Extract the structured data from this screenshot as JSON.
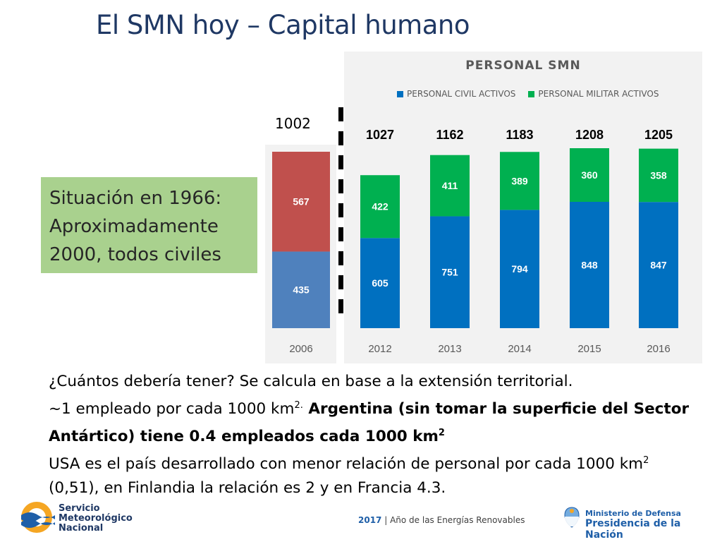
{
  "slide": {
    "title": "El SMN hoy – Capital humano",
    "situation_box": {
      "line1": "Situación en 1966:",
      "line2": "Aproximadamente",
      "line3": "2000, todos civiles"
    },
    "total_2006_label": "1002",
    "body": {
      "line1": "¿Cuántos debería tener? Se calcula en base a la extensión territorial.",
      "line2_a": "~1 empleado por cada 1000 km",
      "line2_sup": "2.",
      "line2_b": " Argentina (sin tomar la superficie del Sector",
      "line3_a": "Antártico) tiene 0.4 empleados cada 1000 km",
      "line3_sup": "2",
      "line4_a": "USA es el país desarrollado con menor relación de personal por cada 1000 km",
      "line4_sup": "2",
      "line5": "(0,51), en Finlandia la relación es 2 y en Francia 4.3."
    },
    "footer": {
      "org_line1": "Servicio",
      "org_line2": "Meteorológico",
      "org_line3": "Nacional",
      "year": "2017",
      "year_sep": " | ",
      "year_text": "Año de las Energías Renovables",
      "ministry_line1": "Ministerio de Defensa",
      "ministry_line2": "Presidencia de la Nación"
    }
  },
  "colors": {
    "civil_2006": "#4f81bd",
    "militar_2006": "#c0504d",
    "civil": "#0070c0",
    "militar": "#00b050",
    "title": "#1f3864",
    "situation_bg": "#a9d18e"
  },
  "chart_data": [
    {
      "type": "bar",
      "stacked": true,
      "categories": [
        "2006"
      ],
      "series": [
        {
          "values": [
            435
          ]
        },
        {
          "values": [
            567
          ]
        }
      ],
      "title": "",
      "ylim": [
        0,
        1100
      ]
    },
    {
      "type": "bar",
      "stacked": true,
      "title": "PERSONAL SMN",
      "categories": [
        "2012",
        "2013",
        "2014",
        "2015",
        "2016"
      ],
      "series": [
        {
          "name": "PERSONAL CIVIL ACTIVOS",
          "values": [
            605,
            751,
            794,
            848,
            847
          ]
        },
        {
          "name": "PERSONAL MILITAR ACTIVOS",
          "values": [
            422,
            411,
            389,
            360,
            358
          ]
        }
      ],
      "totals": [
        1027,
        1162,
        1183,
        1208,
        1205
      ],
      "legend": "top",
      "ylim": [
        0,
        1300
      ]
    }
  ]
}
